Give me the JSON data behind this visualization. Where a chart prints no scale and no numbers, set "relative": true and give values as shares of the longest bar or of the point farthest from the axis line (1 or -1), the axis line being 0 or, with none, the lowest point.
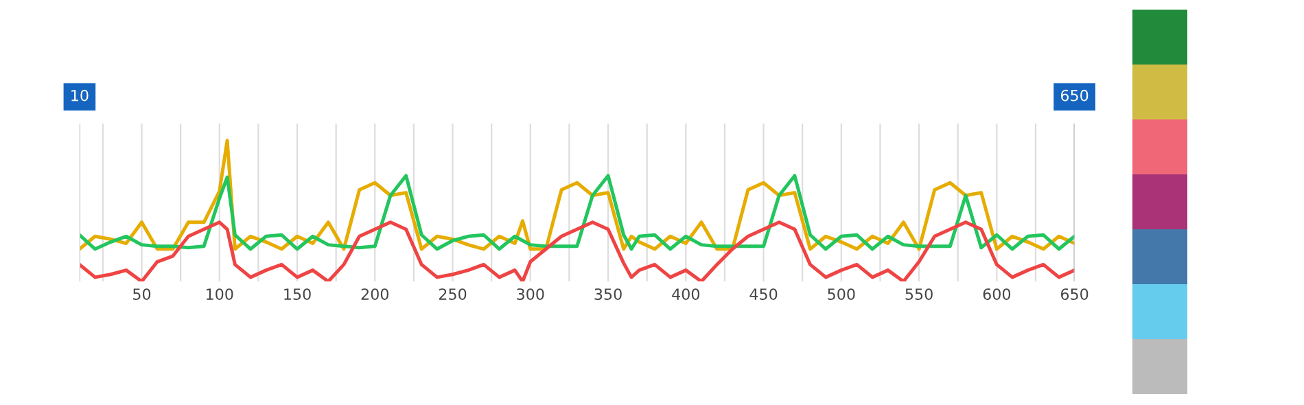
{
  "chart_data": {
    "type": "line",
    "relative": true,
    "x": [
      10,
      20,
      30,
      40,
      50,
      60,
      70,
      80,
      90,
      100,
      105,
      110,
      120,
      130,
      140,
      150,
      160,
      170,
      180,
      190,
      200,
      210,
      220,
      230,
      240,
      250,
      260,
      270,
      280,
      290,
      295,
      300,
      310,
      320,
      330,
      340,
      350,
      360,
      365,
      370,
      380,
      390,
      400,
      410,
      420,
      430,
      440,
      450,
      460,
      470,
      480,
      490,
      500,
      510,
      520,
      530,
      540,
      550,
      560,
      570,
      580,
      590,
      600,
      610,
      620,
      630,
      640,
      650
    ],
    "series": [
      {
        "color": "#e6ac00",
        "values": [
          0.23,
          0.32,
          0.3,
          0.27,
          0.42,
          0.23,
          0.23,
          0.42,
          0.42,
          0.64,
          1,
          0.23,
          0.32,
          0.28,
          0.23,
          0.32,
          0.27,
          0.42,
          0.23,
          0.65,
          0.7,
          0.61,
          0.63,
          0.23,
          0.32,
          0.3,
          0.26,
          0.23,
          0.32,
          0.27,
          0.43,
          0.23,
          0.23,
          0.65,
          0.7,
          0.61,
          0.63,
          0.23,
          0.32,
          0.28,
          0.23,
          0.32,
          0.27,
          0.42,
          0.23,
          0.23,
          0.65,
          0.7,
          0.61,
          0.63,
          0.23,
          0.32,
          0.28,
          0.23,
          0.32,
          0.27,
          0.42,
          0.23,
          0.65,
          0.7,
          0.61,
          0.63,
          0.23,
          0.32,
          0.28,
          0.23,
          0.32,
          0.27
        ]
      },
      {
        "color": "#22c55e",
        "values": [
          0.33,
          0.23,
          0.28,
          0.32,
          0.26,
          0.25,
          0.25,
          0.24,
          0.25,
          0.59,
          0.74,
          0.33,
          0.23,
          0.32,
          0.33,
          0.23,
          0.32,
          0.26,
          0.25,
          0.24,
          0.25,
          0.61,
          0.75,
          0.33,
          0.23,
          0.29,
          0.32,
          0.33,
          0.23,
          0.32,
          0.29,
          0.26,
          0.25,
          0.25,
          0.25,
          0.61,
          0.75,
          0.33,
          0.23,
          0.32,
          0.33,
          0.23,
          0.32,
          0.26,
          0.25,
          0.25,
          0.25,
          0.25,
          0.61,
          0.75,
          0.33,
          0.23,
          0.32,
          0.33,
          0.23,
          0.32,
          0.26,
          0.25,
          0.25,
          0.25,
          0.61,
          0.24,
          0.33,
          0.23,
          0.32,
          0.33,
          0.23,
          0.32
        ]
      },
      {
        "color": "#ef4444",
        "values": [
          0.12,
          0.03,
          0.05,
          0.08,
          0,
          0.14,
          0.18,
          0.32,
          0.37,
          0.42,
          0.37,
          0.12,
          0.03,
          0.08,
          0.12,
          0.03,
          0.08,
          0,
          0.12,
          0.32,
          0.37,
          0.42,
          0.37,
          0.12,
          0.03,
          0.05,
          0.08,
          0.12,
          0.03,
          0.08,
          0,
          0.14,
          0.23,
          0.32,
          0.37,
          0.42,
          0.37,
          0.13,
          0.03,
          0.08,
          0.12,
          0.03,
          0.08,
          0,
          0.12,
          0.23,
          0.32,
          0.37,
          0.42,
          0.37,
          0.12,
          0.03,
          0.08,
          0.12,
          0.03,
          0.08,
          0,
          0.14,
          0.32,
          0.37,
          0.42,
          0.37,
          0.12,
          0.03,
          0.08,
          0.12,
          0.03,
          0.08
        ]
      }
    ],
    "xlim": [
      10,
      650
    ],
    "xticks": [
      {
        "value": 25,
        "label": null
      },
      50,
      {
        "value": 75,
        "label": null
      },
      100,
      {
        "value": 125,
        "label": null
      },
      150,
      {
        "value": 175,
        "label": null
      },
      200,
      {
        "value": 225,
        "label": null
      },
      250,
      {
        "value": 275,
        "label": null
      },
      300,
      {
        "value": 325,
        "label": null
      },
      350,
      {
        "value": 375,
        "label": null
      },
      400,
      {
        "value": 425,
        "label": null
      },
      450,
      {
        "value": 475,
        "label": null
      },
      500,
      {
        "value": 525,
        "label": null
      },
      550,
      {
        "value": 575,
        "label": null
      },
      600,
      {
        "value": 625,
        "label": null
      },
      650
    ],
    "grid": "x",
    "tick_labels": "x",
    "ref_lines": [
      {
        "axis": "x",
        "value": 10,
        "label": "10",
        "color": "#b0bec5"
      },
      {
        "axis": "x",
        "value": 650,
        "label": "650",
        "color": "#b0bec5"
      }
    ]
  }
}
